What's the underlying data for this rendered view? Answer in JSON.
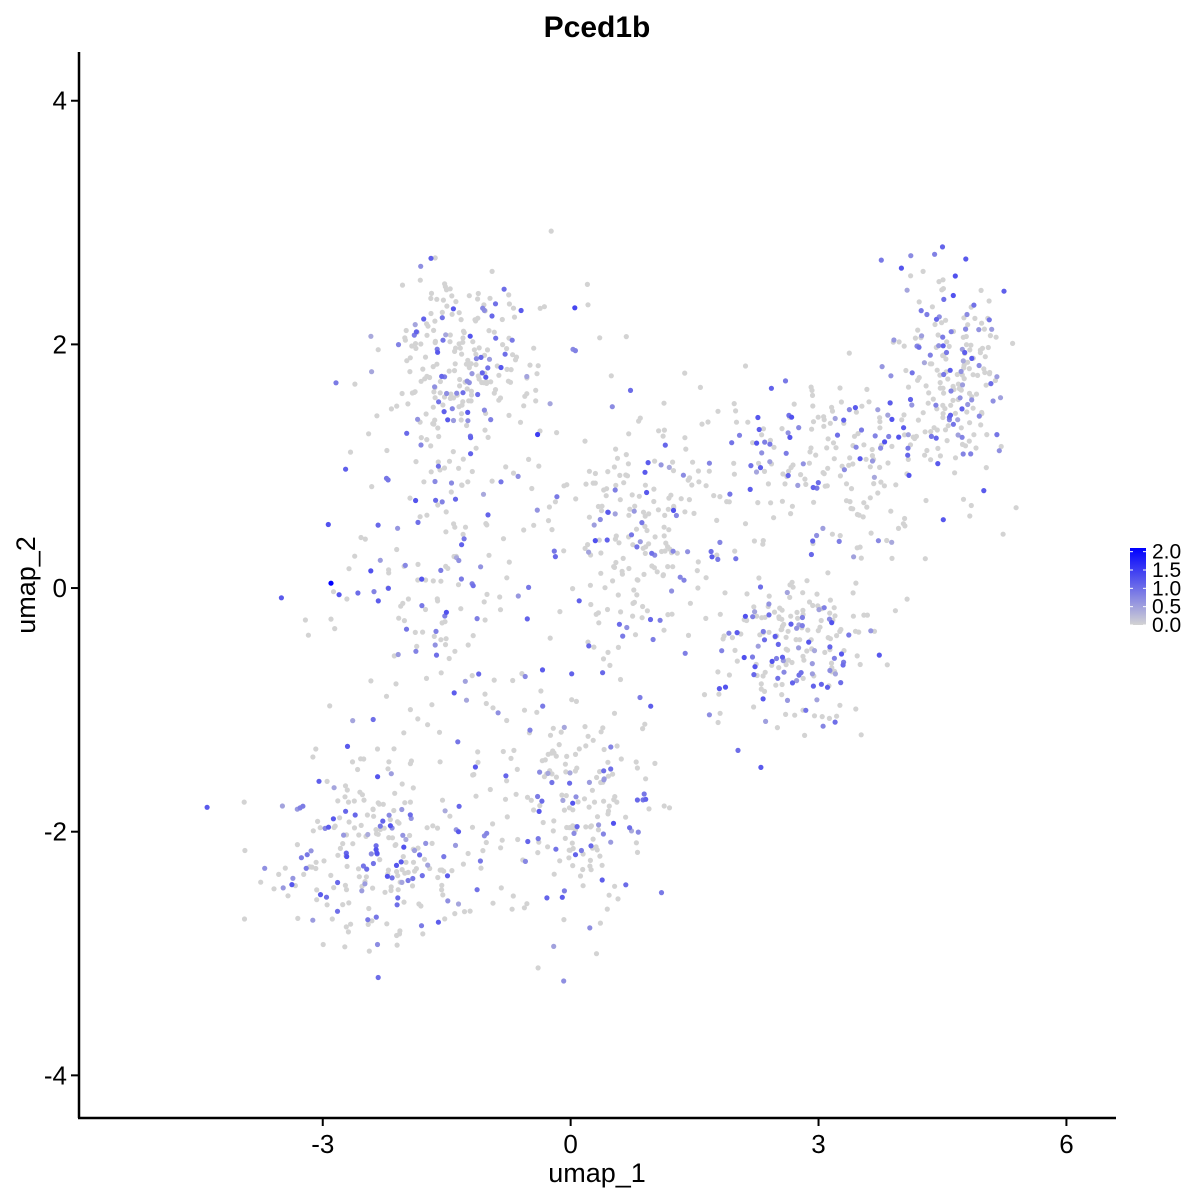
{
  "chart_data": {
    "type": "scatter",
    "title": "Pced1b",
    "xlabel": "umap_1",
    "ylabel": "umap_2",
    "xlim": [
      -5.95,
      6.6
    ],
    "ylim": [
      -4.35,
      4.4
    ],
    "xticks": [
      -3,
      0,
      3,
      6
    ],
    "xtick_labels": [
      "-3",
      "0",
      "3",
      "6"
    ],
    "yticks": [
      -4,
      -2,
      0,
      2,
      4
    ],
    "ytick_labels": [
      "-4",
      "-2",
      "0",
      "2",
      "4"
    ],
    "grid": false,
    "legend": {
      "position": "right",
      "type": "colorbar",
      "labels": [
        "2.0",
        "1.5",
        "1.0",
        "0.5",
        "0.0"
      ],
      "values": [
        2.0,
        1.5,
        1.0,
        0.5,
        0.0
      ],
      "range": [
        0,
        2.1
      ]
    },
    "colors": {
      "low": "#d3d3d3",
      "high": "#0000ff"
    },
    "points": [
      {
        "x": -2.9,
        "y": 0.04,
        "v": 2.1
      },
      {
        "x": 0.05,
        "y": 2.3,
        "v": 1.4
      },
      {
        "x": -0.4,
        "y": 1.26,
        "v": 1.5
      },
      {
        "x": 2.1,
        "y": -0.57,
        "v": 1.3
      },
      {
        "x": -4.4,
        "y": -1.8,
        "v": 1.2
      },
      {
        "x": 3.8,
        "y": 1.2,
        "v": 1.3
      },
      {
        "x": 5.0,
        "y": 0.8,
        "v": 1.2
      },
      {
        "x": -3.5,
        "y": -0.08,
        "v": 1.2
      },
      {
        "x": 0.9,
        "y": 0.95,
        "v": 1.2
      },
      {
        "x": -2.7,
        "y": -1.3,
        "v": 1.2
      },
      {
        "x": 4.5,
        "y": 2.8,
        "v": 1.1
      },
      {
        "x": -1.0,
        "y": 0.6,
        "v": 1.1
      },
      {
        "x": 1.7,
        "y": 0.3,
        "v": 1.0
      },
      {
        "x": -2.1,
        "y": -2.6,
        "v": 1.0
      },
      {
        "x": 3.2,
        "y": -1.1,
        "v": 1.0
      },
      {
        "x": 0.4,
        "y": -1.5,
        "v": 1.0
      },
      {
        "x": -1.6,
        "y": 1.0,
        "v": 1.0
      },
      {
        "x": 2.6,
        "y": 1.7,
        "v": 0.9
      },
      {
        "x": -3.2,
        "y": -2.3,
        "v": 0.9
      },
      {
        "x": 1.1,
        "y": -2.5,
        "v": 0.9
      }
    ],
    "cloud": {
      "n": 1700,
      "positive_fraction": 0.3,
      "value_range": [
        0.4,
        1.3
      ],
      "regions": [
        {
          "name": "left-lobe",
          "center": [
            -1.6,
            0.2
          ],
          "spread": [
            1.1,
            1.5
          ]
        },
        {
          "name": "upper-left",
          "center": [
            -1.3,
            1.9
          ],
          "spread": [
            0.9,
            0.6
          ]
        },
        {
          "name": "lower-left",
          "center": [
            -2.3,
            -2.2
          ],
          "spread": [
            1.2,
            0.7
          ]
        },
        {
          "name": "lower-middle",
          "center": [
            0.0,
            -1.8
          ],
          "spread": [
            1.0,
            0.8
          ]
        },
        {
          "name": "middle",
          "center": [
            0.8,
            0.4
          ],
          "spread": [
            1.0,
            1.0
          ]
        },
        {
          "name": "right-arm",
          "center": [
            3.2,
            1.0
          ],
          "spread": [
            1.3,
            0.8
          ]
        },
        {
          "name": "far-right",
          "center": [
            4.6,
            1.8
          ],
          "spread": [
            0.6,
            0.7
          ]
        },
        {
          "name": "right-lower",
          "center": [
            2.6,
            -0.5
          ],
          "spread": [
            0.9,
            0.7
          ]
        }
      ]
    }
  }
}
